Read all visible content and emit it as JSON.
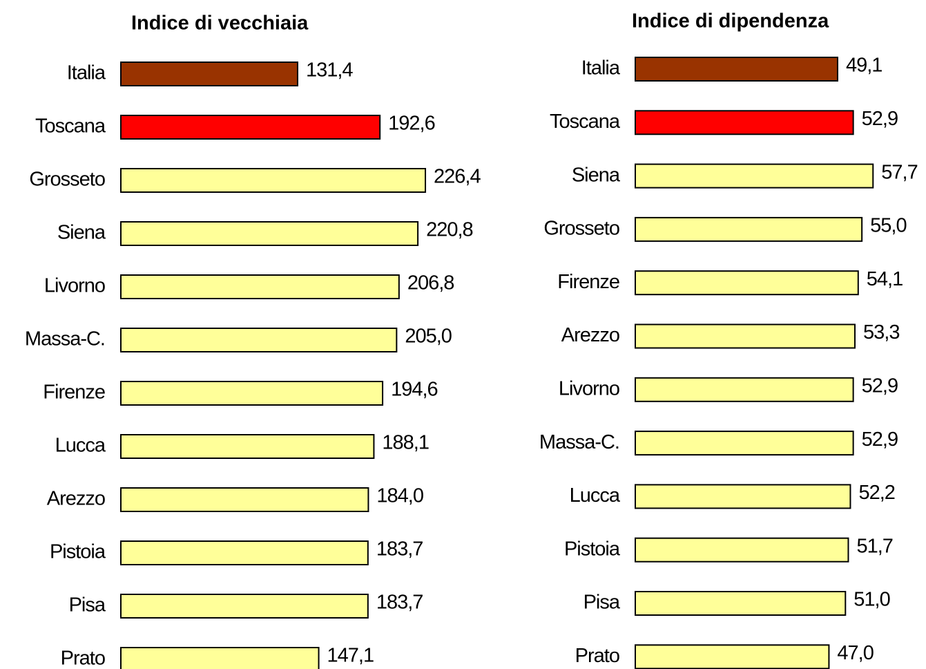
{
  "chart_data": [
    {
      "type": "bar",
      "orientation": "horizontal",
      "title": "Indice di vecchiaia",
      "categories": [
        "Italia",
        "Toscana",
        "Grosseto",
        "Siena",
        "Livorno",
        "Massa-C.",
        "Firenze",
        "Lucca",
        "Arezzo",
        "Pistoia",
        "Pisa",
        "Prato"
      ],
      "values": [
        131.4,
        192.6,
        226.4,
        220.8,
        206.8,
        205.0,
        194.6,
        188.1,
        184.0,
        183.7,
        183.7,
        147.1
      ],
      "value_labels": [
        "131,4",
        "192,6",
        "226,4",
        "220,8",
        "206,8",
        "205,0",
        "194,6",
        "188,1",
        "184,0",
        "183,7",
        "183,7",
        "147,1"
      ],
      "colors": [
        "#993300",
        "#ff0000",
        "#ffff99",
        "#ffff99",
        "#ffff99",
        "#ffff99",
        "#ffff99",
        "#ffff99",
        "#ffff99",
        "#ffff99",
        "#ffff99",
        "#ffff99"
      ],
      "xlim": [
        0,
        250
      ]
    },
    {
      "type": "bar",
      "orientation": "horizontal",
      "title": "Indice di dipendenza",
      "categories": [
        "Italia",
        "Toscana",
        "Siena",
        "Grosseto",
        "Firenze",
        "Arezzo",
        "Livorno",
        "Massa-C.",
        "Lucca",
        "Pistoia",
        "Pisa",
        "Prato"
      ],
      "values": [
        49.1,
        52.9,
        57.7,
        55.0,
        54.1,
        53.3,
        52.9,
        52.9,
        52.2,
        51.7,
        51.0,
        47.0
      ],
      "value_labels": [
        "49,1",
        "52,9",
        "57,7",
        "55,0",
        "54,1",
        "53,3",
        "52,9",
        "52,9",
        "52,2",
        "51,7",
        "51,0",
        "47,0"
      ],
      "colors": [
        "#993300",
        "#ff0000",
        "#ffff99",
        "#ffff99",
        "#ffff99",
        "#ffff99",
        "#ffff99",
        "#ffff99",
        "#ffff99",
        "#ffff99",
        "#ffff99",
        "#ffff99"
      ],
      "xlim": [
        0,
        60
      ]
    }
  ]
}
